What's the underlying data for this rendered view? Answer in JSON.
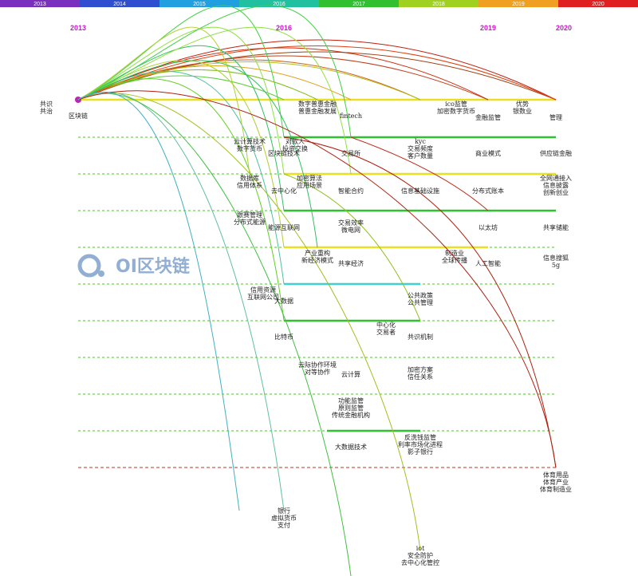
{
  "year_bar": [
    "2013",
    "2014",
    "2015",
    "2016",
    "2017",
    "2018",
    "2019",
    "2020"
  ],
  "year_headers": [
    "2013",
    "2016",
    "2019",
    "2020"
  ],
  "brand": "OI区块链",
  "nodes": [
    {
      "lines": [
        "共识",
        "共治"
      ]
    },
    {
      "lines": [
        "区块链"
      ]
    },
    {
      "lines": [
        "数字普惠金融",
        "普惠金融发展"
      ]
    },
    {
      "lines": [
        "fintech"
      ]
    },
    {
      "lines": [
        "ico监管",
        "加密数字货币"
      ]
    },
    {
      "lines": [
        "金融监管"
      ]
    },
    {
      "lines": [
        "优势",
        "银数业"
      ]
    },
    {
      "lines": [
        "管理"
      ]
    },
    {
      "lines": [
        "云计算技术",
        "数字货币"
      ]
    },
    {
      "lines": [
        "对款人",
        "投资交换"
      ]
    },
    {
      "lines": [
        "区块链技术"
      ]
    },
    {
      "lines": [
        "交易所"
      ]
    },
    {
      "lines": [
        "kyc",
        "交易频度",
        "客户数量"
      ]
    },
    {
      "lines": [
        "商业模式"
      ]
    },
    {
      "lines": [
        "供应链金融"
      ]
    },
    {
      "lines": [
        "数据库",
        "信用体系"
      ]
    },
    {
      "lines": [
        "加密算法",
        "应用场景"
      ]
    },
    {
      "lines": [
        "去中心化"
      ]
    },
    {
      "lines": [
        "智能合约"
      ]
    },
    {
      "lines": [
        "信息基础设施"
      ]
    },
    {
      "lines": [
        "分布式账本"
      ]
    },
    {
      "lines": [
        "全网通接入",
        "信息披露",
        "创新创业"
      ]
    },
    {
      "lines": [
        "跟赛管理",
        "分布式能源"
      ]
    },
    {
      "lines": [
        "能源互联网"
      ]
    },
    {
      "lines": [
        "交易效率",
        "微电网"
      ]
    },
    {
      "lines": [
        "以太坊"
      ]
    },
    {
      "lines": [
        "共享储能"
      ]
    },
    {
      "lines": [
        "产业重构",
        "新经济模式"
      ]
    },
    {
      "lines": [
        "共享经济"
      ]
    },
    {
      "lines": [
        "制造业",
        "全球传播"
      ]
    },
    {
      "lines": [
        "人工智能"
      ]
    },
    {
      "lines": [
        "信息搜狐",
        "5g"
      ]
    },
    {
      "lines": [
        "信用资源",
        "互联网公司"
      ]
    },
    {
      "lines": [
        "大数据"
      ]
    },
    {
      "lines": [
        "公共政策",
        "公共管理"
      ]
    },
    {
      "lines": [
        "中心化",
        "交易者"
      ]
    },
    {
      "lines": [
        "比特币"
      ]
    },
    {
      "lines": [
        "共识机制"
      ]
    },
    {
      "lines": [
        "云际协作环境",
        "对等协作"
      ]
    },
    {
      "lines": [
        "云计算"
      ]
    },
    {
      "lines": [
        "加密方案",
        "信任关系"
      ]
    },
    {
      "lines": [
        "功能监管",
        "原则监管",
        "传统金融机构"
      ]
    },
    {
      "lines": [
        "大数据技术"
      ]
    },
    {
      "lines": [
        "反洗钱监管",
        "利率市场化进程",
        "影子银行"
      ]
    },
    {
      "lines": [
        "体育用品",
        "体育产业",
        "体育制造业"
      ]
    },
    {
      "lines": [
        "银行",
        "虚拟货币",
        "支付"
      ]
    },
    {
      "lines": [
        "iot",
        "安全防护",
        "去中心化管控"
      ]
    }
  ]
}
